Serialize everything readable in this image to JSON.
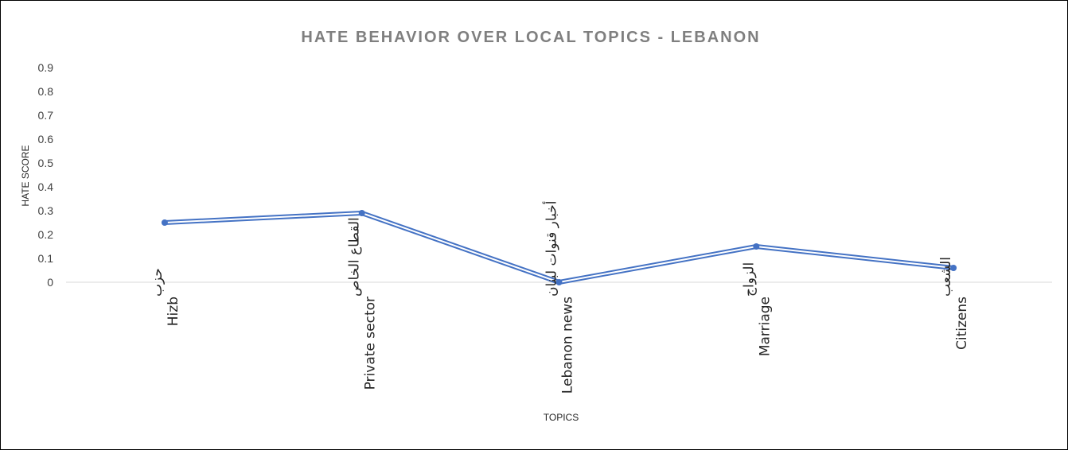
{
  "chart_data": {
    "type": "line",
    "title": "HATE BEHAVIOR OVER LOCAL TOPICS - LEBANON",
    "xlabel": "TOPICS",
    "ylabel": "HATE SCORE",
    "ylim": [
      0,
      0.9
    ],
    "yticks": [
      "0",
      "0.1",
      "0.2",
      "0.3",
      "0.4",
      "0.5",
      "0.6",
      "0.7",
      "0.8",
      "0.9"
    ],
    "grid": false,
    "legend": "none",
    "categories": [
      {
        "arabic": "حزب",
        "english": "Hizb"
      },
      {
        "arabic": "القطاع الخاص",
        "english": "Private sector"
      },
      {
        "arabic": "أخبار قنوات لبنان",
        "english": "Lebanon news"
      },
      {
        "arabic": "الزواج",
        "english": "Marriage"
      },
      {
        "arabic": "الشعب",
        "english": "Citizens"
      }
    ],
    "series": [
      {
        "values": [
          0.25,
          0.29,
          0.0,
          0.15,
          0.06
        ],
        "color": "#4472c4"
      }
    ]
  }
}
